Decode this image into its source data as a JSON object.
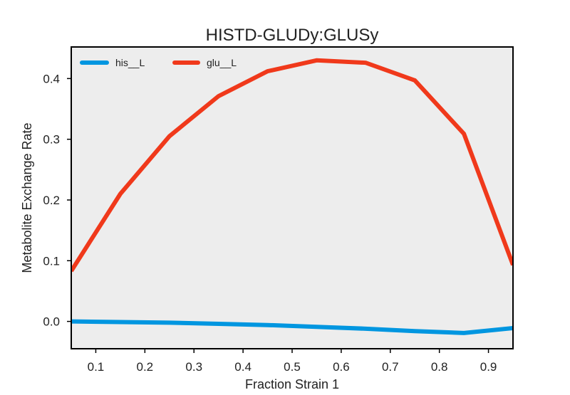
{
  "chart_data": {
    "type": "line",
    "title": "HISTD-GLUDy:GLUSy",
    "xlabel": "Fraction Strain 1",
    "ylabel": "Metabolite Exchange Rate",
    "xlim": [
      0.05,
      0.95
    ],
    "ylim": [
      -0.045,
      0.452
    ],
    "xticks": [
      0.1,
      0.2,
      0.3,
      0.4,
      0.5,
      0.6,
      0.7,
      0.8,
      0.9
    ],
    "yticks": [
      0.0,
      0.1,
      0.2,
      0.3,
      0.4
    ],
    "xtick_labels": [
      "0.1",
      "0.2",
      "0.3",
      "0.4",
      "0.5",
      "0.6",
      "0.7",
      "0.8",
      "0.9"
    ],
    "ytick_labels": [
      "0.0",
      "0.1",
      "0.2",
      "0.3",
      "0.4"
    ],
    "grid": false,
    "legend_position": "top-left",
    "background_color": "#ededed",
    "x": [
      0.05,
      0.15,
      0.25,
      0.35,
      0.45,
      0.55,
      0.65,
      0.75,
      0.85,
      0.95
    ],
    "series": [
      {
        "name": "his__L",
        "color": "#0096e0",
        "values": [
          0.0,
          -0.001,
          -0.002,
          -0.004,
          -0.006,
          -0.009,
          -0.012,
          -0.016,
          -0.019,
          -0.011
        ]
      },
      {
        "name": "glu__L",
        "color": "#f0391b",
        "values": [
          0.083,
          0.21,
          0.305,
          0.371,
          0.412,
          0.43,
          0.426,
          0.397,
          0.309,
          0.093
        ]
      }
    ]
  }
}
